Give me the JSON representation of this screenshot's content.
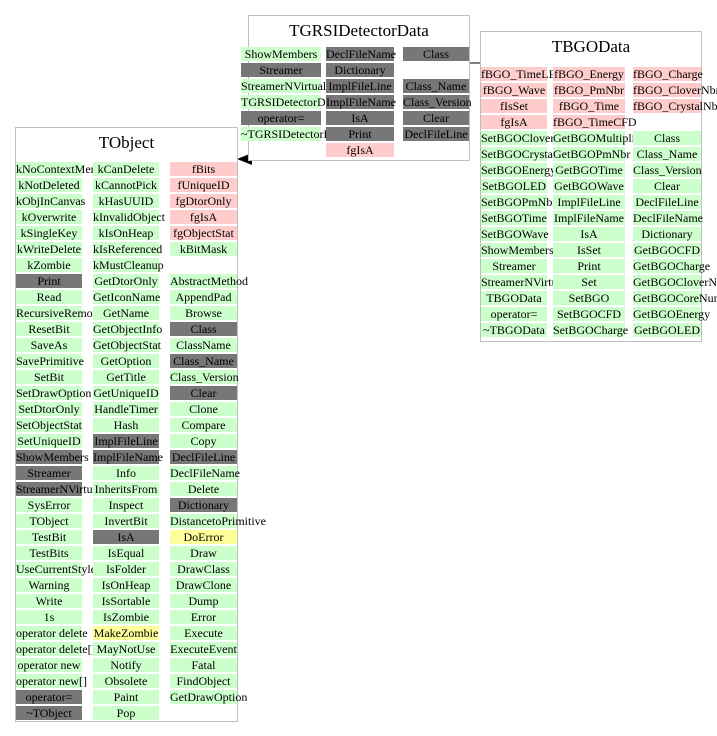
{
  "colors": {
    "public": "#ccffcc",
    "member": "#777777",
    "private": "#ffcccc",
    "highlight": "#ffff99",
    "border": "#bfbfbf"
  },
  "boxes": {
    "tgrsi": {
      "title": "TGRSIDetectorData",
      "columns": [
        [
          {
            "t": "ShowMembers",
            "k": "g"
          },
          {
            "t": "Streamer",
            "k": "d"
          },
          {
            "t": "StreamerNVirtual",
            "k": "g"
          },
          {
            "t": "TGRSIDetectorData",
            "k": "g"
          },
          {
            "t": "operator=",
            "k": "d"
          },
          {
            "t": "~TGRSIDetectorData",
            "k": "g"
          }
        ],
        [
          {
            "t": "DeclFileName",
            "k": "d"
          },
          {
            "t": "Dictionary",
            "k": "d"
          },
          {
            "t": "ImplFileLine",
            "k": "d"
          },
          {
            "t": "ImplFileName",
            "k": "d"
          },
          {
            "t": "IsA",
            "k": "d"
          },
          {
            "t": "Print",
            "k": "d"
          },
          {
            "t": "fgIsA",
            "k": "p"
          }
        ],
        [
          {
            "t": "Class",
            "k": "d"
          },
          {
            "t": "",
            "k": "w"
          },
          {
            "t": "Class_Name",
            "k": "d"
          },
          {
            "t": "Class_Version",
            "k": "d"
          },
          {
            "t": "Clear",
            "k": "d"
          },
          {
            "t": "DeclFileLine",
            "k": "d"
          }
        ]
      ]
    },
    "tbgo": {
      "title": "TBGOData",
      "columns": [
        [
          {
            "t": "fBGO_TimeLED",
            "k": "p"
          },
          {
            "t": "fBGO_Wave",
            "k": "p"
          },
          {
            "t": "fIsSet",
            "k": "p"
          },
          {
            "t": "fgIsA",
            "k": "p"
          },
          {
            "t": "SetBGOCloverNbr",
            "k": "g"
          },
          {
            "t": "SetBGOCrystalNbr",
            "k": "g"
          },
          {
            "t": "SetBGOEnergy",
            "k": "g"
          },
          {
            "t": "SetBGOLED",
            "k": "g"
          },
          {
            "t": "SetBGOPmNbr",
            "k": "g"
          },
          {
            "t": "SetBGOTime",
            "k": "g"
          },
          {
            "t": "SetBGOWave",
            "k": "g"
          },
          {
            "t": "ShowMembers",
            "k": "g"
          },
          {
            "t": "Streamer",
            "k": "g"
          },
          {
            "t": "StreamerNVirtual",
            "k": "g"
          },
          {
            "t": "TBGOData",
            "k": "g"
          },
          {
            "t": "operator=",
            "k": "g"
          },
          {
            "t": "~TBGOData",
            "k": "g"
          }
        ],
        [
          {
            "t": "fBGO_Energy",
            "k": "p"
          },
          {
            "t": "fBGO_PmNbr",
            "k": "p"
          },
          {
            "t": "fBGO_Time",
            "k": "p"
          },
          {
            "t": "fBGO_TimeCFD",
            "k": "p"
          },
          {
            "t": "GetBGOMultiplicity",
            "k": "g"
          },
          {
            "t": "GetBGOPmNbr",
            "k": "g"
          },
          {
            "t": "GetBGOTime",
            "k": "g"
          },
          {
            "t": "GetBGOWave",
            "k": "g"
          },
          {
            "t": "ImplFileLine",
            "k": "g"
          },
          {
            "t": "ImplFileName",
            "k": "g"
          },
          {
            "t": "IsA",
            "k": "g"
          },
          {
            "t": "IsSet",
            "k": "g"
          },
          {
            "t": "Print",
            "k": "g"
          },
          {
            "t": "Set",
            "k": "g"
          },
          {
            "t": "SetBGO",
            "k": "g"
          },
          {
            "t": "SetBGOCFD",
            "k": "g"
          },
          {
            "t": "SetBGOCharge",
            "k": "g"
          }
        ],
        [
          {
            "t": "fBGO_Charge",
            "k": "p"
          },
          {
            "t": "fBGO_CloverNbr",
            "k": "p"
          },
          {
            "t": "fBGO_CrystalNbr",
            "k": "p"
          },
          {
            "t": "",
            "k": "w"
          },
          {
            "t": "Class",
            "k": "g"
          },
          {
            "t": "Class_Name",
            "k": "g"
          },
          {
            "t": "Class_Version",
            "k": "g"
          },
          {
            "t": "Clear",
            "k": "g"
          },
          {
            "t": "DeclFileLine",
            "k": "g"
          },
          {
            "t": "DeclFileName",
            "k": "g"
          },
          {
            "t": "Dictionary",
            "k": "g"
          },
          {
            "t": "GetBGOCFD",
            "k": "g"
          },
          {
            "t": "GetBGOCharge",
            "k": "g"
          },
          {
            "t": "GetBGOCloverNumber",
            "k": "g"
          },
          {
            "t": "GetBGOCoreNumber",
            "k": "g"
          },
          {
            "t": "GetBGOEnergy",
            "k": "g"
          },
          {
            "t": "GetBGOLED",
            "k": "g"
          }
        ]
      ]
    },
    "tobject": {
      "title": "TObject",
      "columns": [
        [
          {
            "t": "kNoContextMenu",
            "k": "g"
          },
          {
            "t": "kNotDeleted",
            "k": "g"
          },
          {
            "t": "kObjInCanvas",
            "k": "g"
          },
          {
            "t": "kOverwrite",
            "k": "g"
          },
          {
            "t": "kSingleKey",
            "k": "g"
          },
          {
            "t": "kWriteDelete",
            "k": "g"
          },
          {
            "t": "kZombie",
            "k": "g"
          },
          {
            "t": "Print",
            "k": "d"
          },
          {
            "t": "Read",
            "k": "g"
          },
          {
            "t": "RecursiveRemove",
            "k": "g"
          },
          {
            "t": "ResetBit",
            "k": "g"
          },
          {
            "t": "SaveAs",
            "k": "g"
          },
          {
            "t": "SavePrimitive",
            "k": "g"
          },
          {
            "t": "SetBit",
            "k": "g"
          },
          {
            "t": "SetDrawOption",
            "k": "g"
          },
          {
            "t": "SetDtorOnly",
            "k": "g"
          },
          {
            "t": "SetObjectStat",
            "k": "g"
          },
          {
            "t": "SetUniqueID",
            "k": "g"
          },
          {
            "t": "ShowMembers",
            "k": "d"
          },
          {
            "t": "Streamer",
            "k": "d"
          },
          {
            "t": "StreamerNVirtual",
            "k": "d"
          },
          {
            "t": "SysError",
            "k": "g"
          },
          {
            "t": "TObject",
            "k": "g"
          },
          {
            "t": "TestBit",
            "k": "g"
          },
          {
            "t": "TestBits",
            "k": "g"
          },
          {
            "t": "UseCurrentStyle",
            "k": "g"
          },
          {
            "t": "Warning",
            "k": "g"
          },
          {
            "t": "Write",
            "k": "g"
          },
          {
            "t": "1s",
            "k": "g"
          },
          {
            "t": "operator delete",
            "k": "g"
          },
          {
            "t": "operator delete[]",
            "k": "g"
          },
          {
            "t": "operator new",
            "k": "g"
          },
          {
            "t": "operator new[]",
            "k": "g"
          },
          {
            "t": "operator=",
            "k": "d"
          },
          {
            "t": "~TObject",
            "k": "d"
          }
        ],
        [
          {
            "t": "kCanDelete",
            "k": "g"
          },
          {
            "t": "kCannotPick",
            "k": "g"
          },
          {
            "t": "kHasUUID",
            "k": "g"
          },
          {
            "t": "kInvalidObject",
            "k": "g"
          },
          {
            "t": "kIsOnHeap",
            "k": "g"
          },
          {
            "t": "kIsReferenced",
            "k": "g"
          },
          {
            "t": "kMustCleanup",
            "k": "g"
          },
          {
            "t": "GetDtorOnly",
            "k": "g"
          },
          {
            "t": "GetIconName",
            "k": "g"
          },
          {
            "t": "GetName",
            "k": "g"
          },
          {
            "t": "GetObjectInfo",
            "k": "g"
          },
          {
            "t": "GetObjectStat",
            "k": "g"
          },
          {
            "t": "GetOption",
            "k": "g"
          },
          {
            "t": "GetTitle",
            "k": "g"
          },
          {
            "t": "GetUniqueID",
            "k": "g"
          },
          {
            "t": "HandleTimer",
            "k": "g"
          },
          {
            "t": "Hash",
            "k": "g"
          },
          {
            "t": "ImplFileLine",
            "k": "d"
          },
          {
            "t": "ImplFileName",
            "k": "d"
          },
          {
            "t": "Info",
            "k": "g"
          },
          {
            "t": "InheritsFrom",
            "k": "g"
          },
          {
            "t": "Inspect",
            "k": "g"
          },
          {
            "t": "InvertBit",
            "k": "g"
          },
          {
            "t": "IsA",
            "k": "d"
          },
          {
            "t": "IsEqual",
            "k": "g"
          },
          {
            "t": "IsFolder",
            "k": "g"
          },
          {
            "t": "IsOnHeap",
            "k": "g"
          },
          {
            "t": "IsSortable",
            "k": "g"
          },
          {
            "t": "IsZombie",
            "k": "g"
          },
          {
            "t": "MakeZombie",
            "k": "y"
          },
          {
            "t": "MayNotUse",
            "k": "g"
          },
          {
            "t": "Notify",
            "k": "g"
          },
          {
            "t": "Obsolete",
            "k": "g"
          },
          {
            "t": "Paint",
            "k": "g"
          },
          {
            "t": "Pop",
            "k": "g"
          }
        ],
        [
          {
            "t": "fBits",
            "k": "p"
          },
          {
            "t": "fUniqueID",
            "k": "p"
          },
          {
            "t": "fgDtorOnly",
            "k": "p"
          },
          {
            "t": "fgIsA",
            "k": "p"
          },
          {
            "t": "fgObjectStat",
            "k": "p"
          },
          {
            "t": "kBitMask",
            "k": "g"
          },
          {
            "t": "",
            "k": "w"
          },
          {
            "t": "AbstractMethod",
            "k": "g"
          },
          {
            "t": "AppendPad",
            "k": "g"
          },
          {
            "t": "Browse",
            "k": "g"
          },
          {
            "t": "Class",
            "k": "d"
          },
          {
            "t": "ClassName",
            "k": "g"
          },
          {
            "t": "Class_Name",
            "k": "d"
          },
          {
            "t": "Class_Version",
            "k": "g"
          },
          {
            "t": "Clear",
            "k": "d"
          },
          {
            "t": "Clone",
            "k": "g"
          },
          {
            "t": "Compare",
            "k": "g"
          },
          {
            "t": "Copy",
            "k": "g"
          },
          {
            "t": "DeclFileLine",
            "k": "d"
          },
          {
            "t": "DeclFileName",
            "k": "g"
          },
          {
            "t": "Delete",
            "k": "g"
          },
          {
            "t": "Dictionary",
            "k": "d"
          },
          {
            "t": "DistancetoPrimitive",
            "k": "g"
          },
          {
            "t": "DoError",
            "k": "y"
          },
          {
            "t": "Draw",
            "k": "g"
          },
          {
            "t": "DrawClass",
            "k": "g"
          },
          {
            "t": "DrawClone",
            "k": "g"
          },
          {
            "t": "Dump",
            "k": "g"
          },
          {
            "t": "Error",
            "k": "g"
          },
          {
            "t": "Execute",
            "k": "g"
          },
          {
            "t": "ExecuteEvent",
            "k": "g"
          },
          {
            "t": "Fatal",
            "k": "g"
          },
          {
            "t": "FindObject",
            "k": "g"
          },
          {
            "t": "GetDrawOption",
            "k": "g"
          }
        ]
      ]
    }
  }
}
